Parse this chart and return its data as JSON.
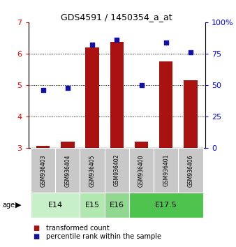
{
  "title": "GDS4591 / 1450354_a_at",
  "samples": [
    "GSM936403",
    "GSM936404",
    "GSM936405",
    "GSM936402",
    "GSM936400",
    "GSM936401",
    "GSM936406"
  ],
  "transformed_counts": [
    3.08,
    3.2,
    6.2,
    6.38,
    3.2,
    5.75,
    5.15
  ],
  "percentile_ranks": [
    46,
    48,
    82,
    86,
    50,
    84,
    76
  ],
  "age_groups": [
    {
      "label": "E14",
      "samples": [
        "GSM936403",
        "GSM936404"
      ],
      "color": "#c8f0c8"
    },
    {
      "label": "E15",
      "samples": [
        "GSM936405"
      ],
      "color": "#b0e8b0"
    },
    {
      "label": "E16",
      "samples": [
        "GSM936402"
      ],
      "color": "#90d890"
    },
    {
      "label": "E17.5",
      "samples": [
        "GSM936400",
        "GSM936401",
        "GSM936406"
      ],
      "color": "#4ec44e"
    }
  ],
  "ylim_left": [
    3,
    7
  ],
  "ylim_right": [
    0,
    100
  ],
  "yticks_left": [
    3,
    4,
    5,
    6,
    7
  ],
  "yticks_right": [
    0,
    25,
    50,
    75,
    100
  ],
  "ytick_labels_right": [
    "0",
    "25",
    "50",
    "75",
    "100%"
  ],
  "bar_color": "#aa1111",
  "dot_color": "#1111aa",
  "bar_width": 0.55,
  "legend_items": [
    "transformed count",
    "percentile rank within the sample"
  ],
  "sample_box_color": "#c8c8c8"
}
